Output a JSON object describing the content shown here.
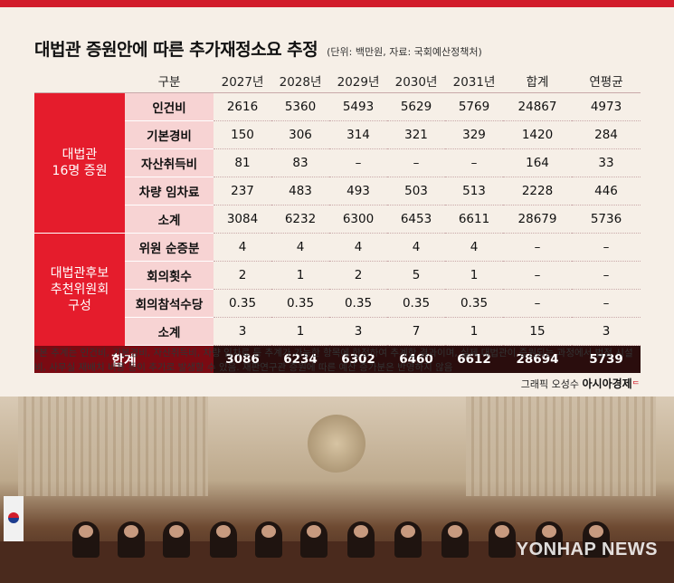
{
  "title": "대법관 증원안에 따른 추가재정소요 추정",
  "unit_note": "(단위: 백만원, 자료: 국회예산정책처)",
  "chart_data": {
    "type": "table",
    "columns": [
      "구분",
      "2027년",
      "2028년",
      "2029년",
      "2030년",
      "2031년",
      "합계",
      "연평균"
    ],
    "groups": [
      {
        "name_lines": [
          "대법관",
          "16명 증원"
        ],
        "rows": [
          {
            "label": "인건비",
            "values": [
              "2616",
              "5360",
              "5493",
              "5629",
              "5769",
              "24867",
              "4973"
            ]
          },
          {
            "label": "기본경비",
            "values": [
              "150",
              "306",
              "314",
              "321",
              "329",
              "1420",
              "284"
            ]
          },
          {
            "label": "자산취득비",
            "values": [
              "81",
              "83",
              "–",
              "–",
              "–",
              "164",
              "33"
            ]
          },
          {
            "label": "차량 임차료",
            "values": [
              "237",
              "483",
              "493",
              "503",
              "513",
              "2228",
              "446"
            ]
          },
          {
            "label": "소계",
            "values": [
              "3084",
              "6232",
              "6300",
              "6453",
              "6611",
              "28679",
              "5736"
            ]
          }
        ]
      },
      {
        "name_lines": [
          "대법관후보",
          "추천위원회",
          "구성"
        ],
        "rows": [
          {
            "label": "위원 순증분",
            "values": [
              "4",
              "4",
              "4",
              "4",
              "4",
              "–",
              "–"
            ]
          },
          {
            "label": "회의횟수",
            "values": [
              "2",
              "1",
              "2",
              "5",
              "1",
              "–",
              "–"
            ]
          },
          {
            "label": "회의참석수당",
            "values": [
              "0.35",
              "0.35",
              "0.35",
              "0.35",
              "0.35",
              "–",
              "–"
            ]
          },
          {
            "label": "소계",
            "values": [
              "3",
              "1",
              "3",
              "7",
              "1",
              "15",
              "3"
            ]
          }
        ]
      }
    ],
    "total": {
      "label": "합계",
      "values": [
        "3086",
        "6234",
        "6302",
        "6460",
        "6612",
        "28694",
        "5739"
      ]
    }
  },
  "note": "*본 추계는 인건비, 기본경비, 자산취득비, 차량 임차료 등 추계가 가능한 항목에 한정하여 추계한 결과이며, 실제 대법관이 증원되는 과정에서 법정 시설비, 사무실 재배치 비용 등이 추가로 발생할 수 있음. 재판연구관 증원에 따른 예산 증가분은 반영하지 않음",
  "credit_prefix": "그래픽 오성수",
  "credit_brand": "아시아경제",
  "watermark": "YONHAP NEWS",
  "colors": {
    "accent": "#e51c2c",
    "row_label_bg": "#f7d3d3",
    "total_bg": "#2a0d0d"
  }
}
